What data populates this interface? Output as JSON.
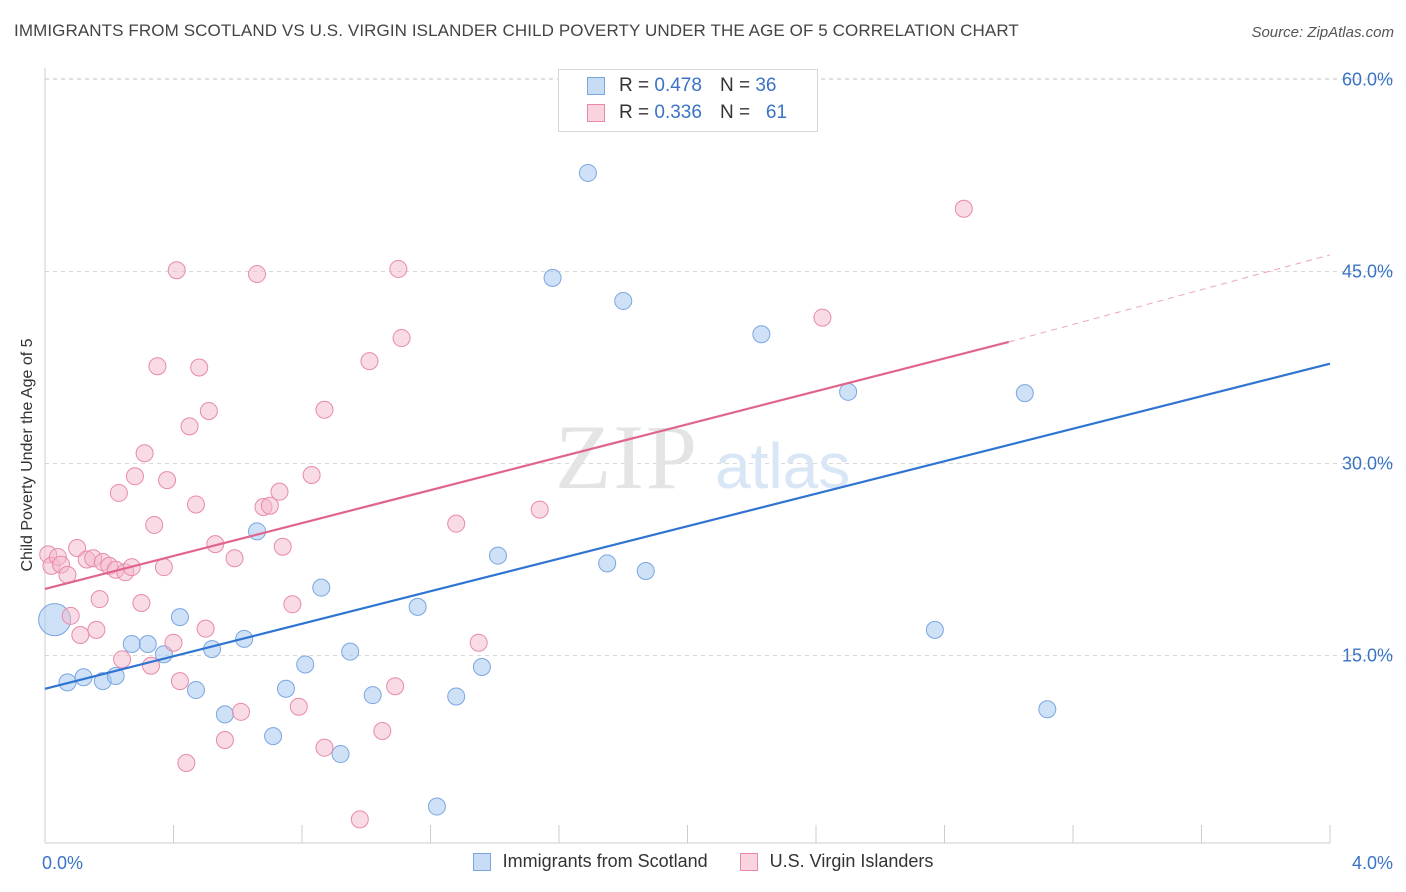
{
  "header": {
    "title": "IMMIGRANTS FROM SCOTLAND VS U.S. VIRGIN ISLANDER CHILD POVERTY UNDER THE AGE OF 5 CORRELATION CHART",
    "source": "Source: ZipAtlas.com"
  },
  "watermark": {
    "part1": "ZIP",
    "part2": "atlas"
  },
  "legend_top": {
    "rows": [
      {
        "r_label": "R =",
        "r_value": "0.478",
        "n_label": "N =",
        "n_value": "36",
        "color": "#a8c8f0"
      },
      {
        "r_label": "R =",
        "r_value": "0.336",
        "n_label": "N =",
        "n_value": "61",
        "color": "#f4b8cb"
      }
    ]
  },
  "chart_data": {
    "type": "scatter",
    "title": "IMMIGRANTS FROM SCOTLAND VS U.S. VIRGIN ISLANDER CHILD POVERTY UNDER THE AGE OF 5 CORRELATION CHART",
    "xlabel": "",
    "ylabel": "Child Poverty Under the Age of 5",
    "xlim": [
      0,
      4.0
    ],
    "ylim": [
      0,
      63
    ],
    "x_tick_labels": [
      "0.0%",
      "4.0%"
    ],
    "y_tick_labels": [
      "15.0%",
      "30.0%",
      "45.0%",
      "60.0%"
    ],
    "y_ticks": [
      15,
      30,
      45,
      60
    ],
    "grid": true,
    "legend_position": "bottom",
    "series": [
      {
        "name": "Immigrants from Scotland",
        "color": "#a8c8f0",
        "stroke": "#7aa6e0",
        "trend_color": "#2f74d0",
        "trend": {
          "x0": 0.0,
          "y0": 12.4,
          "x1": 4.0,
          "y1": 37.8
        },
        "points": [
          [
            0.03,
            17.8,
            "big"
          ],
          [
            0.07,
            12.9
          ],
          [
            0.12,
            13.3
          ],
          [
            0.18,
            13.0
          ],
          [
            0.22,
            13.4
          ],
          [
            0.27,
            15.9
          ],
          [
            0.32,
            15.9
          ],
          [
            0.37,
            15.1
          ],
          [
            0.42,
            18.0
          ],
          [
            0.47,
            12.3
          ],
          [
            0.52,
            15.5
          ],
          [
            0.56,
            10.4
          ],
          [
            0.62,
            16.3
          ],
          [
            0.66,
            24.7
          ],
          [
            0.71,
            8.7
          ],
          [
            0.75,
            12.4
          ],
          [
            0.81,
            14.3
          ],
          [
            0.86,
            20.3
          ],
          [
            0.92,
            7.3
          ],
          [
            0.95,
            15.3
          ],
          [
            1.02,
            11.9
          ],
          [
            1.16,
            18.8
          ],
          [
            1.22,
            3.2
          ],
          [
            1.28,
            11.8
          ],
          [
            1.36,
            14.1
          ],
          [
            1.41,
            22.8
          ],
          [
            1.58,
            44.5
          ],
          [
            1.69,
            52.7
          ],
          [
            1.75,
            22.2
          ],
          [
            1.8,
            42.7
          ],
          [
            1.87,
            21.6
          ],
          [
            2.23,
            40.1
          ],
          [
            2.5,
            35.6
          ],
          [
            2.77,
            17.0
          ],
          [
            3.05,
            35.5
          ],
          [
            3.12,
            10.8
          ]
        ]
      },
      {
        "name": "U.S. Virgin Islanders",
        "color": "#f4b8cb",
        "stroke": "#e98aa8",
        "trend_color": "#e0658e",
        "trend": {
          "x0": 0.0,
          "y0": 20.2,
          "x1": 3.0,
          "y1": 39.5
        },
        "trend_dashed": {
          "x0": 3.0,
          "y0": 39.5,
          "x1": 4.0,
          "y1": 46.3
        },
        "points": [
          [
            0.01,
            22.9
          ],
          [
            0.02,
            22.0
          ],
          [
            0.04,
            22.7
          ],
          [
            0.05,
            22.1
          ],
          [
            0.07,
            21.3
          ],
          [
            0.08,
            18.1
          ],
          [
            0.1,
            23.4
          ],
          [
            0.11,
            16.6
          ],
          [
            0.13,
            22.5
          ],
          [
            0.15,
            22.6
          ],
          [
            0.16,
            17.0
          ],
          [
            0.17,
            19.4
          ],
          [
            0.18,
            22.3
          ],
          [
            0.2,
            22.0
          ],
          [
            0.22,
            21.7
          ],
          [
            0.23,
            27.7
          ],
          [
            0.24,
            14.7
          ],
          [
            0.25,
            21.5
          ],
          [
            0.27,
            21.9
          ],
          [
            0.28,
            29.0
          ],
          [
            0.3,
            19.1
          ],
          [
            0.31,
            30.8
          ],
          [
            0.33,
            14.2
          ],
          [
            0.34,
            25.2
          ],
          [
            0.35,
            37.6
          ],
          [
            0.37,
            21.9
          ],
          [
            0.38,
            28.7
          ],
          [
            0.4,
            16.0
          ],
          [
            0.41,
            45.1
          ],
          [
            0.42,
            13.0
          ],
          [
            0.44,
            6.6
          ],
          [
            0.45,
            32.9
          ],
          [
            0.47,
            26.8
          ],
          [
            0.48,
            37.5
          ],
          [
            0.5,
            17.1
          ],
          [
            0.51,
            34.1
          ],
          [
            0.53,
            23.7
          ],
          [
            0.56,
            8.4
          ],
          [
            0.59,
            22.6
          ],
          [
            0.61,
            10.6
          ],
          [
            0.66,
            44.8
          ],
          [
            0.68,
            26.6
          ],
          [
            0.7,
            26.7
          ],
          [
            0.73,
            27.8
          ],
          [
            0.74,
            23.5
          ],
          [
            0.77,
            19.0
          ],
          [
            0.79,
            11.0
          ],
          [
            0.83,
            29.1
          ],
          [
            0.87,
            7.8
          ],
          [
            0.87,
            34.2
          ],
          [
            0.98,
            2.2
          ],
          [
            1.01,
            38.0
          ],
          [
            1.05,
            9.1
          ],
          [
            1.09,
            12.6
          ],
          [
            1.1,
            45.2
          ],
          [
            1.11,
            39.8
          ],
          [
            1.28,
            25.3
          ],
          [
            1.35,
            16.0
          ],
          [
            1.54,
            26.4
          ],
          [
            2.42,
            41.4
          ],
          [
            2.86,
            49.9
          ]
        ]
      }
    ]
  }
}
